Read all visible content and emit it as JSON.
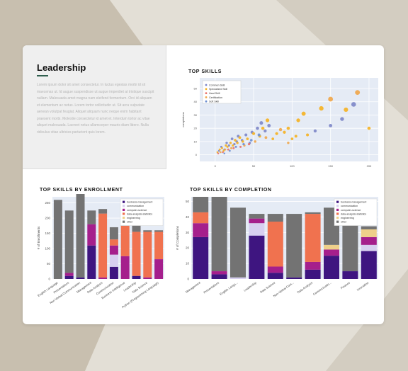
{
  "panel": {
    "title": "Leadership",
    "body": "Lorem ipsum dolor sit amet consectetur. In luctus egestas morbi id sit maecenas ut. Id augue suspendisse ut augue imperdiet at tristique suscipit nullam. Malesuada amet magna nam eleifend fermentum. Orci id aliquam et elementum ac netus. Lorem tortor sollicitudin ut. Sit arcu vulputate aenean volutpat feugiat. Aliquet aliquam nunc neque enim habitant praesent morbi. Molestie consectetur id amet et. Interdum tortor ac vitae aliquet malesuada. Laoreet netus ullamcorper mauris diam libero. Nulla ridiculus vitae ultricies parturient quis lorem."
  },
  "colors": {
    "business-management": "#3e1580",
    "communication": "#d7cff0",
    "computer-science": "#a51f8c",
    "data-analysis-statistics": "#f0724f",
    "engineering": "#eed08a",
    "other": "#737373",
    "plot_bg": "#e5ebf5"
  },
  "chart_data": [
    {
      "type": "scatter",
      "title": "TOP SKILLS",
      "xlabel": "",
      "ylabel": "completions",
      "xlim": [
        -20,
        212
      ],
      "ylim": [
        -5,
        58
      ],
      "xticks": [
        0,
        50,
        100,
        150,
        200
      ],
      "yticks": [
        0,
        10,
        20,
        30,
        40,
        50
      ],
      "legend": "top-left",
      "series": [
        {
          "name": "Common Skill",
          "color": "#7c86c8",
          "points": [
            [
              5,
              3
            ],
            [
              8,
              6
            ],
            [
              12,
              4
            ],
            [
              15,
              9
            ],
            [
              18,
              7
            ],
            [
              22,
              12
            ],
            [
              25,
              8
            ],
            [
              28,
              10
            ],
            [
              30,
              14
            ],
            [
              35,
              11
            ],
            [
              40,
              15
            ],
            [
              45,
              9
            ],
            [
              48,
              17
            ],
            [
              55,
              20
            ],
            [
              60,
              24
            ],
            [
              65,
              18
            ],
            [
              70,
              22
            ],
            [
              130,
              18
            ],
            [
              150,
              22
            ],
            [
              165,
              27
            ],
            [
              180,
              38
            ]
          ]
        },
        {
          "name": "Specialized Skill",
          "color": "#f5b120",
          "points": [
            [
              3,
              2
            ],
            [
              6,
              4
            ],
            [
              9,
              5
            ],
            [
              11,
              3
            ],
            [
              14,
              7
            ],
            [
              16,
              6
            ],
            [
              20,
              9
            ],
            [
              23,
              7
            ],
            [
              26,
              11
            ],
            [
              29,
              9
            ],
            [
              32,
              13
            ],
            [
              36,
              10
            ],
            [
              42,
              12
            ],
            [
              50,
              16
            ],
            [
              58,
              14
            ],
            [
              62,
              20
            ],
            [
              68,
              26
            ],
            [
              75,
              12
            ],
            [
              80,
              16
            ],
            [
              90,
              17
            ],
            [
              95,
              20
            ],
            [
              100,
              12
            ],
            [
              105,
              14
            ],
            [
              108,
              26
            ],
            [
              115,
              31
            ],
            [
              120,
              15
            ],
            [
              138,
              35
            ],
            [
              170,
              34
            ],
            [
              200,
              20
            ]
          ]
        },
        {
          "name": "Hard Skill",
          "color": "#e8716a",
          "points": [
            [
              4,
              1
            ],
            [
              10,
              2
            ],
            [
              17,
              4
            ],
            [
              24,
              5
            ],
            [
              33,
              6
            ],
            [
              44,
              8
            ]
          ]
        },
        {
          "name": "Certification",
          "color": "#f0a548",
          "points": [
            [
              7,
              2
            ],
            [
              13,
              4
            ],
            [
              21,
              5
            ],
            [
              38,
              7
            ],
            [
              52,
              10
            ],
            [
              66,
              13
            ],
            [
              85,
              19
            ],
            [
              95,
              9
            ],
            [
              150,
              42
            ],
            [
              185,
              47
            ]
          ]
        },
        {
          "name": "Soft Skill",
          "color": "#6c8fd1",
          "points": [
            [
              12,
              1
            ],
            [
              19,
              3
            ],
            [
              27,
              6
            ],
            [
              37,
              8
            ],
            [
              47,
              11
            ],
            [
              57,
              15
            ]
          ]
        }
      ]
    },
    {
      "type": "bar",
      "title": "TOP SKILLS BY ENROLLMENT",
      "xlabel": "",
      "ylabel": "# of Enrollments",
      "ylim": [
        0,
        270
      ],
      "yticks": [
        0,
        50,
        100,
        150,
        200,
        250
      ],
      "legend": "top-right",
      "categories": [
        "English Language",
        "Presentations",
        "Non-Verbal Communication",
        "Management",
        "Data Analysis",
        "Communication",
        "Business Intelligence",
        "Leadership",
        "Data Science",
        "Python (Programming Language)"
      ],
      "series": [
        {
          "name": "business-management",
          "values": [
            0,
            10,
            5,
            110,
            0,
            40,
            0,
            10,
            0,
            0
          ]
        },
        {
          "name": "communication",
          "values": [
            0,
            0,
            0,
            0,
            0,
            40,
            0,
            0,
            0,
            0
          ]
        },
        {
          "name": "computer-science",
          "values": [
            0,
            10,
            0,
            70,
            5,
            30,
            75,
            0,
            5,
            65
          ]
        },
        {
          "name": "data-analysis-statistics",
          "values": [
            0,
            0,
            0,
            0,
            210,
            20,
            100,
            145,
            150,
            90
          ]
        },
        {
          "name": "engineering",
          "values": [
            0,
            0,
            0,
            0,
            0,
            0,
            0,
            0,
            0,
            0
          ]
        },
        {
          "name": "other",
          "values": [
            260,
            205,
            275,
            45,
            15,
            40,
            20,
            25,
            5,
            5
          ]
        }
      ]
    },
    {
      "type": "bar",
      "title": "TOP SKILLS BY COMPLETION",
      "xlabel": "",
      "ylabel": "# of Completions",
      "ylim": [
        0,
        53
      ],
      "yticks": [
        0,
        10,
        20,
        30,
        40,
        50
      ],
      "legend": "top-right",
      "categories": [
        "Management",
        "Presentations",
        "English Langu...",
        "Leadership",
        "Data Science",
        "Non-Verbal Com...",
        "Data Analysis",
        "Communicatio...",
        "Finance",
        "Innovation"
      ],
      "series": [
        {
          "name": "business-management",
          "values": [
            27,
            3,
            0,
            28,
            4,
            1,
            6,
            15,
            5,
            18
          ]
        },
        {
          "name": "communication",
          "values": [
            0,
            0,
            1,
            8,
            0,
            0,
            0,
            0,
            0,
            4
          ]
        },
        {
          "name": "computer-science",
          "values": [
            9,
            2,
            0,
            3,
            4,
            0,
            5,
            4,
            0,
            5
          ]
        },
        {
          "name": "data-analysis-statistics",
          "values": [
            7,
            0,
            0,
            0,
            29,
            0,
            31,
            0,
            0,
            0
          ]
        },
        {
          "name": "engineering",
          "values": [
            0,
            0,
            0,
            0,
            0,
            0,
            0,
            3,
            0,
            5
          ]
        },
        {
          "name": "other",
          "values": [
            10,
            48,
            45,
            3,
            5,
            41,
            1,
            24,
            42,
            2
          ]
        }
      ]
    }
  ]
}
